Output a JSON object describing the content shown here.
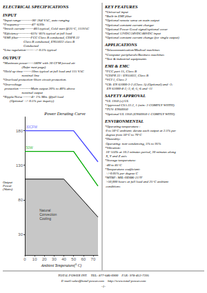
{
  "chart_data": {
    "type": "line",
    "title": "Power Derating Curve",
    "xlabel": "Ambient Temperature(° C)",
    "ylabel": "Output\nPower\n(Watts)",
    "xlim": [
      0,
      75
    ],
    "ylim": [
      0,
      200
    ],
    "xticks": [
      0,
      10,
      20,
      30,
      40,
      50,
      60,
      70
    ],
    "yticks": [
      30,
      80,
      130,
      180
    ],
    "grid": false,
    "series": [
      {
        "color": "#4444ff",
        "x": [
          0,
          50,
          75
        ],
        "values": [
          180,
          180,
          135
        ]
      },
      {
        "color": "#00aa00",
        "x": [
          0,
          50,
          75
        ],
        "values": [
          150,
          150,
          100
        ]
      },
      {
        "type": "area",
        "color": "#000000",
        "x": [
          0,
          40,
          75
        ],
        "values": [
          110,
          110,
          55
        ]
      }
    ],
    "annotations": [
      {
        "text": "30CFM",
        "x": 1,
        "y": 183,
        "color": "#4444ff"
      },
      {
        "text": "50W",
        "x": 1,
        "y": 153,
        "color": "#00aa00"
      },
      {
        "text": "Natural\nConvection\nCooling",
        "x": 15,
        "y": 50,
        "color": "#000000"
      }
    ]
  },
  "page_text": {
    "columns": [
      [
        {
          "title": "ELECTRICAL SPECIFICATIONS",
          "lines": []
        },
        {
          "title": "INPUT",
          "lines": [
            "*Input range----------90~264 VAC, auto ranging",
            "*Frequency-----------47~63Hz",
            "*Inrush current--------40A typical, Cold start @25°C, 115VAC",
            "*Efficiency-----------65%~85% typical at full load",
            "*EMI filter-----------FCC Class B conducted, CISPR 22",
            "                        Class B conducted, EN55022 class B",
            "                        Conducted",
            "*Line regulation-------+/- 0.5% typical"
          ]
        },
        {
          "title": "OUTPUT",
          "lines": [
            "*Maximum power-----180W with 30 CFM forced air",
            "                      (Refer next page)",
            "*Hold up time -------10ms typical at full load and 115 VAC",
            "                      nominal line",
            "*Overload protection-Short circuit protection.",
            "*Overvoltage",
            "  protection ----------Main output 20% to 40% above",
            "                      nominal output",
            "*Ripple/Noise -------4/- 1% Min. @full load",
            "        (Optional +/- 0.5% per inquiry)"
          ]
        }
      ],
      [
        {
          "title": "KEY FEATURES",
          "lines": [
            "*Universal input",
            "*Built-in EMI filter",
            "*Optional remote sense on main output",
            "*Optional constant current charger",
            "*Optional Power Good signal/optional cover",
            "*Optional 12VDC/24VDC/48VDC input",
            "*Optional constant current change (for single output)"
          ]
        },
        {
          "title": "APPLICATIONS",
          "lines": [
            "*Telecommunication/Medical machines",
            "*Computer peripherals/Business machines",
            "*Test & industrial equipments"
          ]
        },
        {
          "title": "EMI & EMC",
          "lines": [
            "*FCC part 15, Class B",
            "*CISPR 22 / EN55022, Class B",
            "*VCI 1, Class 2",
            "*CB: EN 61000-3-2 (Class A) (Optional) and -3;",
            "  EN 61000-4-2,-3,-4,-5,-6 and -11"
          ]
        },
        {
          "title": "SAFETY APPROVAL",
          "lines": [
            "*UL 1950 (c) UL",
            "*Approved CSA 22.2, 1 (min: 3 COMPLY WHTH)",
            "*TUV: EN60950",
            "*Optional UL 1950 (EN60950-1 COMPLY WITH)"
          ]
        },
        {
          "title": "ENVIRONMENTAL",
          "lines": [
            "*Operating temperature :",
            " 0 to 50°C ambient; derate each output at 2.5% per",
            " degree from 50°C to 70°C",
            "*Humidity:",
            " Operating: non-condensing, 5% to 95%",
            "*Vibration:",
            " 10~55Hz at 10.3 minutes period, 30 minutes along",
            " X, Y and Z axis",
            "*Storage temperature:",
            " -40 to 85°C",
            "*Temperature coefficient:",
            " +/-0.05% per degree C",
            "*MTBF: MIL-HDBK-217F",
            " >50,000 hours at full load and 25°C ambient",
            " conditions"
          ]
        }
      ]
    ],
    "footer": [
      "TOTAL POWER INT.    TEL: 877-646-0900    FAX: 978-453-7395",
      "E-mail:sales@total-power.com    http://www.total-power.com",
      "-1-"
    ]
  }
}
